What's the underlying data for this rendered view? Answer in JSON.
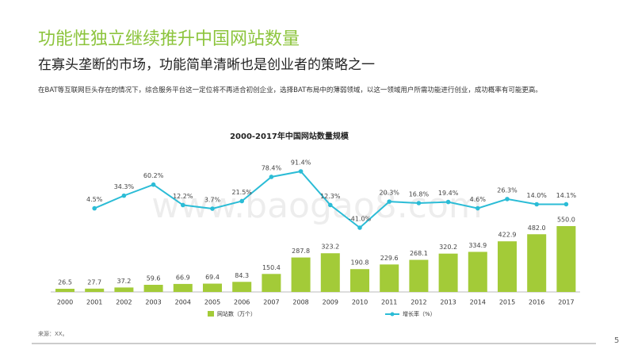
{
  "header": {
    "title": "功能性独立继续推升中国网站数量",
    "subtitle": "在寡头垄断的市场，功能简单清晰也是创业者的策略之一",
    "paragraph": "在BAT等互联网巨头存在的情况下，综合服务平台这一定位将不再适合初创企业，选择BAT布局中的薄弱领域，以这一领域用户所需功能进行创业，成功概率有可能更高。"
  },
  "chart_data": {
    "type": "bar",
    "title": "2000-2017年中国网站数量规模",
    "categories": [
      "2000",
      "2001",
      "2002",
      "2003",
      "2004",
      "2005",
      "2006",
      "2007",
      "2008",
      "2009",
      "2010",
      "2011",
      "2012",
      "2013",
      "2014",
      "2015",
      "2016",
      "2017"
    ],
    "series": [
      {
        "name": "网站数（万个）",
        "type": "bar",
        "color": "#a3cb38",
        "values": [
          26.5,
          27.7,
          37.2,
          59.6,
          66.9,
          69.4,
          84.3,
          150.4,
          287.8,
          323.2,
          190.8,
          229.6,
          268.1,
          320.2,
          334.9,
          422.9,
          482.0,
          550.0
        ],
        "value_labels": [
          "26.5",
          "27.7",
          "37.2",
          "59.6",
          "66.9",
          "69.4",
          "84.3",
          "150.4",
          "287.8",
          "323.2",
          "190.8",
          "229.6",
          "268.1",
          "320.2",
          "334.9",
          "422.9",
          "482.0",
          "550.0"
        ]
      },
      {
        "name": "增长率（%）",
        "type": "line",
        "axis": "y2",
        "color": "#2bbcd6",
        "values": [
          null,
          4.5,
          34.3,
          60.2,
          12.2,
          3.7,
          21.5,
          78.4,
          91.4,
          12.3,
          -41.0,
          20.3,
          16.8,
          19.4,
          4.6,
          26.3,
          14.0,
          14.1
        ],
        "value_labels": [
          null,
          "4.5%",
          "34.3%",
          "60.2%",
          "12.2%",
          "3.7%",
          "21.5%",
          "78.4%",
          "91.4%",
          "12.3%",
          "-41.0%",
          "20.3%",
          "16.8%",
          "19.4%",
          "4.6%",
          "26.3%",
          "14.0%",
          "14.1%"
        ]
      }
    ]
  },
  "footer": {
    "source": "来源：XX。",
    "page": "5",
    "watermark": "www.baogao8.com"
  }
}
